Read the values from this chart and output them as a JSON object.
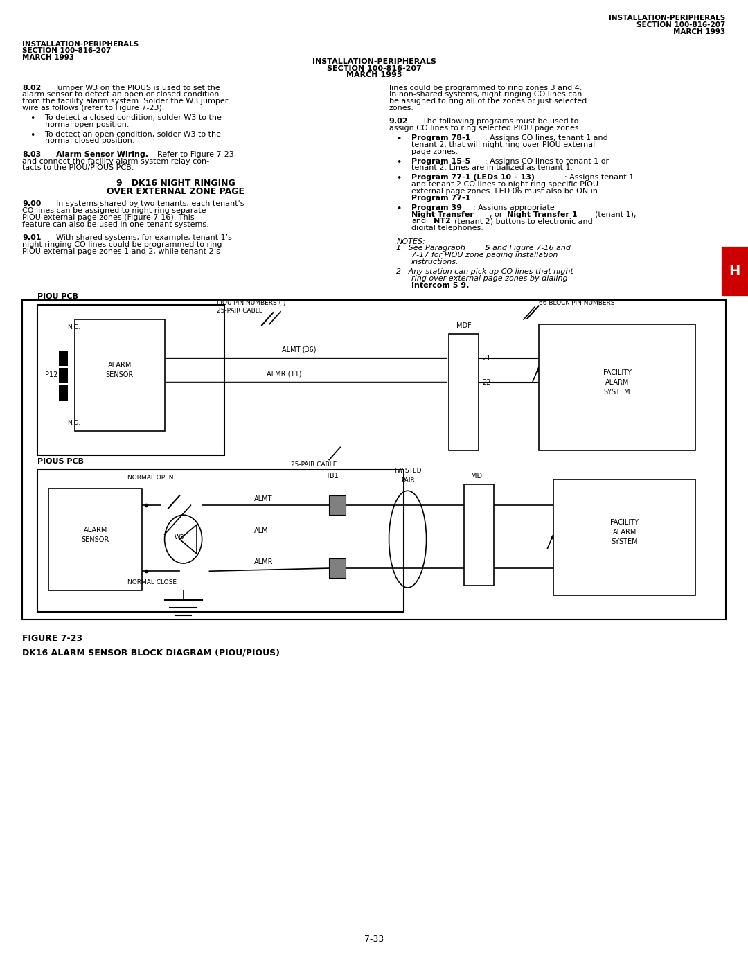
{
  "page_width": 10.8,
  "page_height": 13.97,
  "bg_color": "#ffffff",
  "text_color": "#000000",
  "header_right": [
    "INSTALLATION-PERIPHERALS",
    "SECTION 100-816-207",
    "MARCH 1993"
  ],
  "header_left": [
    "INSTALLATION-PERIPHERALS",
    "SECTION 100-816-207",
    "MARCH 1993"
  ],
  "header_center": [
    "INSTALLATION-PERIPHERALS",
    "SECTION 100-816-207",
    "MARCH 1993"
  ],
  "section_title": "9   DK16 NIGHT RINGING\nOVER EXTERNAL ZONE PAGE",
  "figure_caption_line1": "FIGURE 7-23",
  "figure_caption_line2": "DK16 ALARM SENSOR BLOCK DIAGRAM (PIOU/PIOUS)",
  "page_number": "7-33",
  "tab_label": "H"
}
